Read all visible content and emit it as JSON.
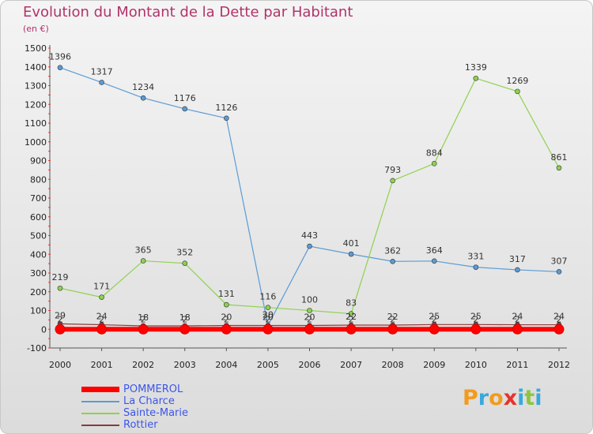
{
  "title": "Evolution du Montant de la Dette par Habitant",
  "subtitle": "(en €)",
  "logo": {
    "text": "Proxiti",
    "colors": [
      "#f29b1c",
      "#39a9dc",
      "#f29b1c",
      "#e8322d",
      "#39a9dc",
      "#8cc63f",
      "#39a9dc"
    ]
  },
  "chart_data": {
    "type": "line",
    "title": "Evolution du Montant de la Dette par Habitant",
    "ylabel": "(en €)",
    "x": [
      "2000",
      "2001",
      "2002",
      "2003",
      "2004",
      "2005",
      "2006",
      "2007",
      "2008",
      "2009",
      "2010",
      "2011",
      "2012"
    ],
    "ylim": [
      -100,
      1500
    ],
    "yticks": [
      -100,
      0,
      100,
      200,
      300,
      400,
      500,
      600,
      700,
      800,
      900,
      1000,
      1100,
      1200,
      1300,
      1400,
      1500
    ],
    "grid": false,
    "legend": "bottom-left",
    "series": [
      {
        "name": "POMMEROL",
        "color": "#ff0000",
        "values": [
          0,
          0,
          0,
          0,
          0,
          0,
          0,
          0,
          0,
          0,
          0,
          0,
          0
        ],
        "labels": [],
        "line_width": 6
      },
      {
        "name": "La Charce",
        "color": "#5b9bd5",
        "values": [
          1396,
          1317,
          1234,
          1176,
          1126,
          20,
          443,
          401,
          362,
          364,
          331,
          317,
          307
        ],
        "labels": [
          "1396",
          "1317",
          "1234",
          "1176",
          "1126",
          "20",
          "443",
          "401",
          "362",
          "364",
          "331",
          "317",
          "307"
        ],
        "line_width": 1.2
      },
      {
        "name": "Sainte-Marie",
        "color": "#8fd14f",
        "values": [
          219,
          171,
          365,
          352,
          131,
          116,
          100,
          83,
          793,
          884,
          1339,
          1269,
          861
        ],
        "labels": [
          "219",
          "171",
          "365",
          "352",
          "131",
          "116",
          "100",
          "83",
          "793",
          "884",
          "1339",
          "1269",
          "861"
        ],
        "line_width": 1.2
      },
      {
        "name": "Rottier",
        "color": "#8b3a3a",
        "values": [
          29,
          24,
          18,
          18,
          20,
          20,
          20,
          22,
          22,
          25,
          25,
          24,
          24
        ],
        "labels": [
          "29",
          "24",
          "18",
          "18",
          "20",
          "20",
          "20",
          "22",
          "22",
          "25",
          "25",
          "24",
          "24"
        ],
        "line_width": 1.2
      }
    ],
    "extra_labels": {
      "x": [
        "2000",
        "2001",
        "2002",
        "2003",
        "2004",
        "2005",
        "2006",
        "2007",
        "2008",
        "2009",
        "2010",
        "2011",
        "2012"
      ],
      "values": [
        "2",
        "2",
        "2",
        "2",
        "2",
        "2",
        "2",
        "2",
        "2",
        "2",
        "2",
        "2",
        "2"
      ]
    }
  }
}
